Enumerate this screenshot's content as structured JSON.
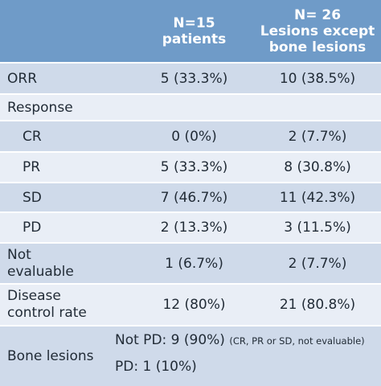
{
  "header": {
    "col1_line1": "N=15",
    "col1_line2": "patients",
    "col2_line1": "N= 26",
    "col2_line2": "Lesions except",
    "col2_line3": "bone lesions"
  },
  "rows": [
    {
      "label": "ORR",
      "n15": "5 (33.3%)",
      "n26": "10 (38.5%)"
    },
    {
      "label": "Response",
      "n15": "",
      "n26": ""
    },
    {
      "label": "CR",
      "n15": "0 (0%)",
      "n26": "2 (7.7%)"
    },
    {
      "label": "PR",
      "n15": "5 (33.3%)",
      "n26": "8 (30.8%)"
    },
    {
      "label": "SD",
      "n15": "7 (46.7%)",
      "n26": "11 (42.3%)"
    },
    {
      "label": "PD",
      "n15": "2 (13.3%)",
      "n26": "3 (11.5%)"
    },
    {
      "label_line1": "Not",
      "label_line2": "evaluable",
      "n15": "1 (6.7%)",
      "n26": "2 (7.7%)"
    },
    {
      "label_line1": "Disease",
      "label_line2": "control rate",
      "n15": "12 (80%)",
      "n26": "21 (80.8%)"
    }
  ],
  "bone": {
    "label": "Bone lesions",
    "line1_main": "Not PD: 9 (90%)",
    "line1_note": "(CR, PR or SD, not evaluable)",
    "line2": "PD: 1 (10%)"
  },
  "colors": {
    "header": "#6f9bc8",
    "row_dark": "#cfdaea",
    "row_light": "#e9eef6",
    "text": "#222c37"
  }
}
